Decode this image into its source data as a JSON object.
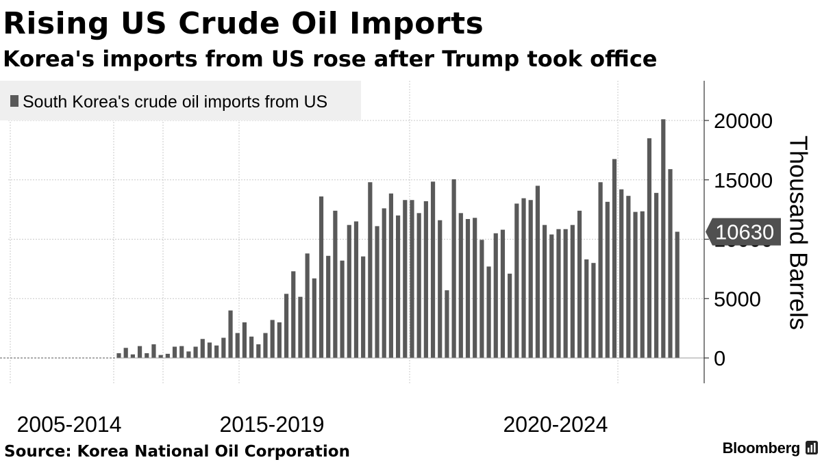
{
  "header": {
    "title": "Rising US Crude Oil Imports",
    "subtitle": "Korea's imports from US rose after Trump took office"
  },
  "footer": {
    "source": "Source: Korea National Oil Corporation",
    "brand": "Bloomberg"
  },
  "colors": {
    "bar": "#595959",
    "grid": "#c8c8c8",
    "legend_bg": "#efefef",
    "callout_bg": "#505050",
    "callout_text": "#ffffff"
  },
  "chart_data": {
    "type": "bar",
    "title": "Rising US Crude Oil Imports",
    "subtitle": "Korea's imports from US rose after Trump took office",
    "ylabel": "Thousand Barrels",
    "ylim": [
      -2000,
      22500
    ],
    "yticks": [
      0,
      5000,
      10000,
      15000,
      20000
    ],
    "ytick_labels": [
      "0",
      "5000",
      "10000",
      "15000",
      "20000"
    ],
    "y_axis_side": "right",
    "grid": true,
    "legend": {
      "position": "top-left",
      "entries": [
        "South Korea's crude oil imports from US"
      ]
    },
    "category_labels": [
      "2005-2014",
      "2015-2019",
      "2020-2024"
    ],
    "series": [
      {
        "name": "South Korea's crude oil imports from US",
        "zero_months": 22,
        "values": [
          400,
          850,
          300,
          1000,
          400,
          1150,
          250,
          350,
          950,
          1000,
          550,
          950,
          1600,
          1300,
          1050,
          1700,
          4000,
          2100,
          3000,
          1800,
          1150,
          2100,
          3200,
          3000,
          5400,
          7300,
          5150,
          8800,
          6700,
          13600,
          8600,
          12400,
          8200,
          11200,
          11500,
          8550,
          14800,
          11100,
          12600,
          13850,
          12000,
          13300,
          13300,
          12200,
          13200,
          14850,
          11600,
          5700,
          15050,
          12200,
          11700,
          11800,
          9950,
          7700,
          10500,
          10800,
          7100,
          13000,
          13450,
          13300,
          14500,
          11200,
          10400,
          10850,
          10850,
          11200,
          12400,
          8300,
          8000,
          14800,
          13150,
          16750,
          14200,
          13650,
          12300,
          12350,
          18500,
          13900,
          20100,
          15900,
          10630
        ]
      }
    ],
    "latest_value_callout": "10630"
  }
}
